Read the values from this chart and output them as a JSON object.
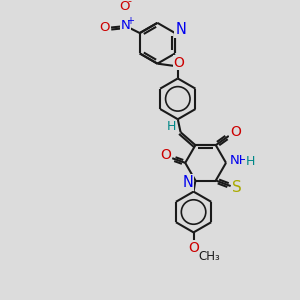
{
  "bg_color": "#dcdcdc",
  "bond_color": "#1a1a1a",
  "bond_lw": 1.5,
  "atom_colors": {
    "N": "#0000ee",
    "O": "#cc0000",
    "S": "#aaaa00",
    "H": "#008888",
    "C": "#1a1a1a"
  },
  "fs": 9.5,
  "figsize": [
    3.0,
    3.0
  ],
  "dpi": 100,
  "ring_r": 22
}
